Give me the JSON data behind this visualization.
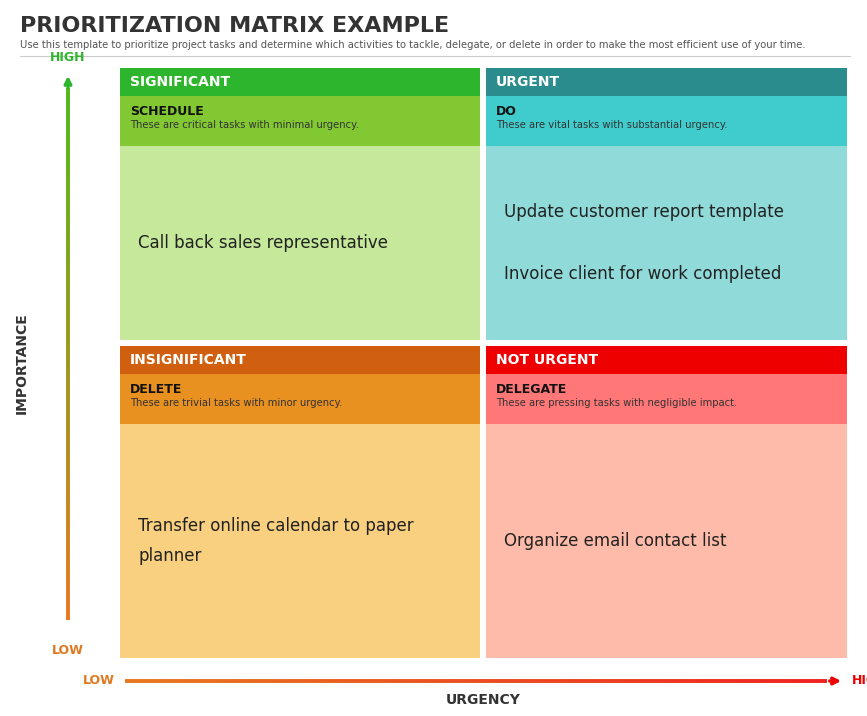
{
  "title": "PRIORITIZATION MATRIX EXAMPLE",
  "subtitle": "Use this template to prioritize project tasks and determine which activities to tackle, delegate, or delete in order to make the most efficient use of your time.",
  "quadrants": {
    "top_left": {
      "header_text": "SIGNIFICANT",
      "header_bg": "#2DB52D",
      "subheader_text": "SCHEDULE",
      "subheader_desc": "These are critical tasks with minimal urgency.",
      "subheader_bg": "#82C832",
      "body_bg": "#C5E89A",
      "body_text": "Call back sales representative",
      "text_color": "#222222"
    },
    "top_right": {
      "header_text": "URGENT",
      "header_bg": "#2A8C8C",
      "subheader_text": "DO",
      "subheader_desc": "These are vital tasks with substantial urgency.",
      "subheader_bg": "#40CCCC",
      "body_bg": "#90DADA",
      "body_text": "Update customer report template\n\nInvoice client for work completed",
      "text_color": "#222222"
    },
    "bottom_left": {
      "header_text": "INSIGNIFICANT",
      "header_bg": "#D06010",
      "subheader_text": "DELETE",
      "subheader_desc": "These are trivial tasks with minor urgency.",
      "subheader_bg": "#E89020",
      "body_bg": "#F8D080",
      "body_text": "Transfer online calendar to paper\nplanner",
      "text_color": "#222222"
    },
    "bottom_right": {
      "header_text": "NOT URGENT",
      "header_bg": "#EE0000",
      "subheader_text": "DELEGATE",
      "subheader_desc": "These are pressing tasks with negligible impact.",
      "subheader_bg": "#FF7777",
      "body_bg": "#FFBBAA",
      "body_text": "Organize email contact list",
      "text_color": "#222222"
    }
  },
  "axis_labels": {
    "importance": "IMPORTANCE",
    "urgency": "URGENCY",
    "high_importance": "HIGH",
    "low_importance": "LOW",
    "high_urgency": "HIGH",
    "low_urgency": "LOW"
  },
  "bg_color": "#FFFFFF",
  "title_color": "#333333",
  "subtitle_color": "#555555"
}
